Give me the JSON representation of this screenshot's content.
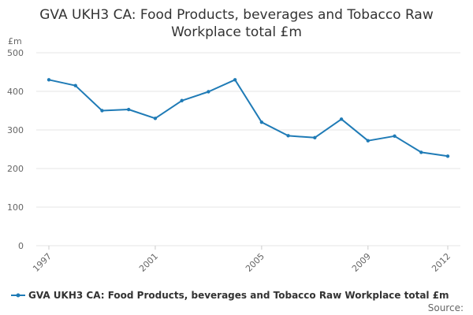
{
  "chart_data": {
    "type": "line",
    "title_lines": [
      "GVA UKH3 CA: Food Products, beverages and Tobacco Raw",
      "Workplace total £m"
    ],
    "unit_label": "£m",
    "xlabel": "",
    "ylabel": "£m",
    "ylim": [
      0,
      500
    ],
    "yticks": [
      0,
      100,
      200,
      300,
      400,
      500
    ],
    "xlim": [
      1997,
      2012
    ],
    "xticks": [
      1997,
      2001,
      2005,
      2009,
      2012
    ],
    "grid": true,
    "legend_position": "bottom",
    "series": [
      {
        "name": "GVA UKH3 CA: Food Products, beverages and Tobacco Raw Workplace total £m",
        "color": "#1f7bb6",
        "x": [
          1997,
          1998,
          1999,
          2000,
          2001,
          2002,
          2003,
          2004,
          2005,
          2006,
          2007,
          2008,
          2009,
          2010,
          2011,
          2012
        ],
        "values": [
          430,
          415,
          350,
          353,
          330,
          376,
          399,
          430,
          320,
          285,
          280,
          328,
          272,
          284,
          242,
          232
        ]
      }
    ],
    "source_label": "Source:"
  },
  "colors": {
    "series": "#1f7bb6",
    "grid": "#e5e5e5",
    "axis_text": "#666666",
    "title": "#333333"
  }
}
